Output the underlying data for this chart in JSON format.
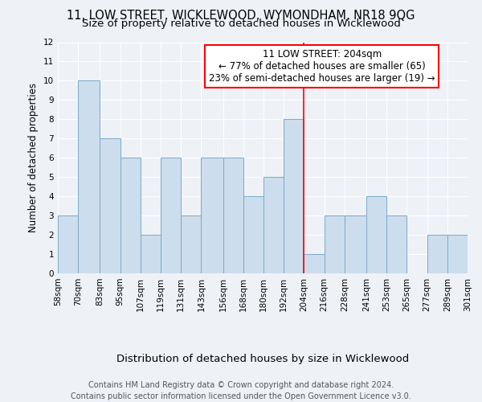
{
  "title": "11, LOW STREET, WICKLEWOOD, WYMONDHAM, NR18 9QG",
  "subtitle": "Size of property relative to detached houses in Wicklewood",
  "xlabel": "Distribution of detached houses by size in Wicklewood",
  "ylabel": "Number of detached properties",
  "bin_edges": [
    58,
    70,
    83,
    95,
    107,
    119,
    131,
    143,
    156,
    168,
    180,
    192,
    204,
    216,
    228,
    241,
    253,
    265,
    277,
    289,
    301
  ],
  "bin_labels": [
    "58sqm",
    "70sqm",
    "83sqm",
    "95sqm",
    "107sqm",
    "119sqm",
    "131sqm",
    "143sqm",
    "156sqm",
    "168sqm",
    "180sqm",
    "192sqm",
    "204sqm",
    "216sqm",
    "228sqm",
    "241sqm",
    "253sqm",
    "265sqm",
    "277sqm",
    "289sqm",
    "301sqm"
  ],
  "counts": [
    3,
    10,
    7,
    6,
    2,
    6,
    3,
    6,
    6,
    4,
    5,
    8,
    1,
    3,
    3,
    4,
    3,
    0,
    2,
    2
  ],
  "bar_color": "#ccdded",
  "bar_edge_color": "#7aaac8",
  "property_line_x": 204,
  "property_line_color": "red",
  "annotation_title": "11 LOW STREET: 204sqm",
  "annotation_line1": "← 77% of detached houses are smaller (65)",
  "annotation_line2": "23% of semi-detached houses are larger (19) →",
  "annotation_box_color": "white",
  "annotation_box_edge_color": "red",
  "ylim": [
    0,
    12
  ],
  "yticks": [
    0,
    1,
    2,
    3,
    4,
    5,
    6,
    7,
    8,
    9,
    10,
    11,
    12
  ],
  "footer_line1": "Contains HM Land Registry data © Crown copyright and database right 2024.",
  "footer_line2": "Contains public sector information licensed under the Open Government Licence v3.0.",
  "background_color": "#eef2f7",
  "grid_color": "white",
  "title_fontsize": 10.5,
  "subtitle_fontsize": 9.5,
  "xlabel_fontsize": 9.5,
  "ylabel_fontsize": 8.5,
  "tick_fontsize": 7.5,
  "annotation_fontsize": 8.5,
  "footer_fontsize": 7
}
